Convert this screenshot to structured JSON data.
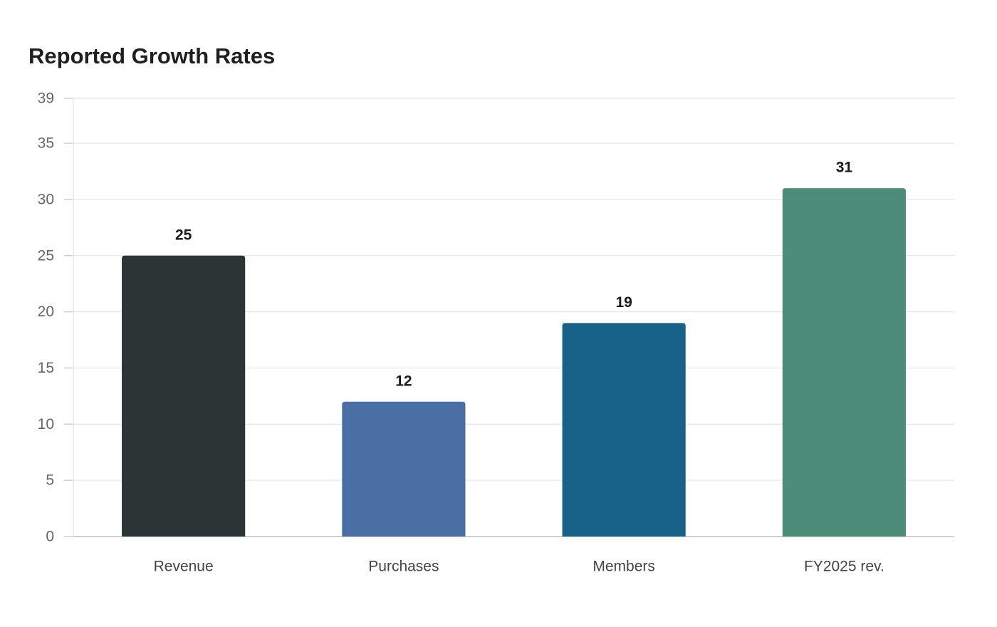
{
  "chart_data": {
    "type": "bar",
    "title": "Reported Growth Rates",
    "xlabel": "",
    "ylabel": "",
    "categories": [
      "Revenue",
      "Purchases",
      "Members",
      "FY2025 rev."
    ],
    "values": [
      25,
      12,
      19,
      31
    ],
    "colors": [
      "#2d3436",
      "#4a6fa5",
      "#186189",
      "#4e8c7a"
    ],
    "ylim": [
      0,
      39
    ],
    "yticks": [
      0,
      5,
      10,
      15,
      20,
      25,
      30,
      35,
      39
    ],
    "grid": true,
    "legend": "none",
    "data_labels": true
  }
}
